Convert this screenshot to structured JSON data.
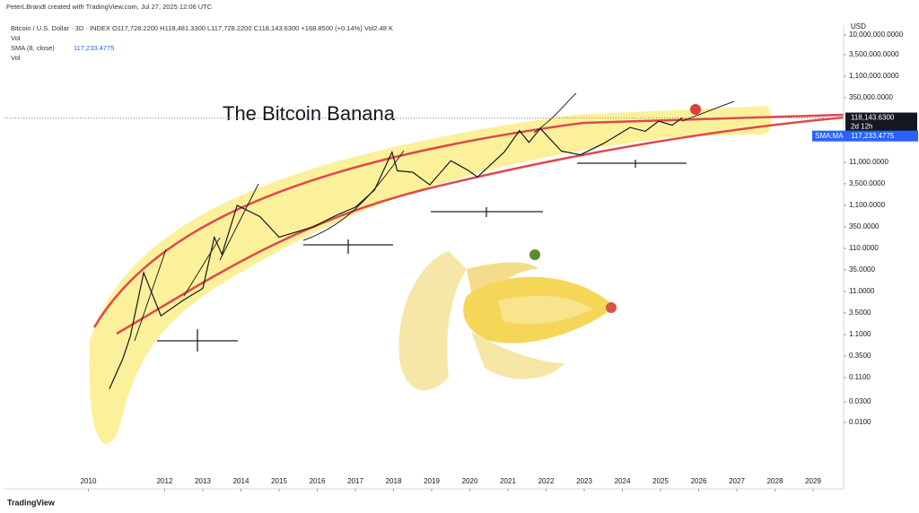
{
  "header": {
    "credit": "PeterLBrandt created with TradingView.com, Jul 27, 2025 12:06 UTC",
    "symbol_line": "Bitcoin / U.S. Dollar · 3D · INDEX  O117,728.2200 H118,481.3300 L117,728.2200 C118,143.6300 +168.8500 (+0.14%) Vol2.48 K",
    "vol_1": "Vol",
    "sma_name": "SMA (8, close)",
    "sma_value": "117,233.4775",
    "vol_2": "Vol"
  },
  "footer": {
    "brand": "TradingView"
  },
  "chart_data": {
    "type": "line",
    "title": "The Bitcoin Banana",
    "y_unit": "USD",
    "log_y": true,
    "color": "#131722",
    "xlim": [
      2007.8,
      2029.8
    ],
    "xticks": [
      2010,
      2012,
      2013,
      2014,
      2015,
      2016,
      2017,
      2018,
      2019,
      2020,
      2021,
      2022,
      2023,
      2024,
      2025,
      2026,
      2027,
      2028,
      2029
    ],
    "ylim": [
      0.000365,
      16950000
    ],
    "yticks": [
      {
        "value": 10000000,
        "label": "10,000,000.0000"
      },
      {
        "value": 3500000,
        "label": "3,500,000.0000"
      },
      {
        "value": 1100000,
        "label": "1,100,000.0000"
      },
      {
        "value": 350000,
        "label": "350,000.0000"
      },
      {
        "value": 11000,
        "label": "11,000.0000"
      },
      {
        "value": 3500,
        "label": "3,500.0000"
      },
      {
        "value": 1100,
        "label": "1,100.0000"
      },
      {
        "value": 350,
        "label": "350.0000"
      },
      {
        "value": 110,
        "label": "110.0000"
      },
      {
        "value": 35,
        "label": "35.0000"
      },
      {
        "value": 11,
        "label": "11.0000"
      },
      {
        "value": 3.5,
        "label": "3.5000"
      },
      {
        "value": 1.1,
        "label": "1.1000"
      },
      {
        "value": 0.35,
        "label": "0.3500"
      },
      {
        "value": 0.11,
        "label": "0.1100"
      },
      {
        "value": 0.03,
        "label": "0.0300"
      },
      {
        "value": 0.01,
        "label": "0.0100"
      }
    ],
    "last_price": {
      "value": 118143.63,
      "label": "118,143.6300"
    },
    "countdown": "2d 12h",
    "sma_tag": "SMA:MA",
    "sma_last": {
      "value": 117233.4775,
      "label": "117,233.4775"
    },
    "x": [
      2010.55,
      2010.9,
      2011.1,
      2011.45,
      2011.9,
      2012.5,
      2013.0,
      2013.3,
      2013.5,
      2013.9,
      2014.5,
      2015.0,
      2015.9,
      2016.5,
      2017.0,
      2017.5,
      2017.96,
      2018.1,
      2018.5,
      2018.95,
      2019.5,
      2019.95,
      2020.2,
      2020.9,
      2021.3,
      2021.55,
      2021.85,
      2022.4,
      2022.9,
      2023.5,
      2024.2,
      2024.6,
      2024.95,
      2025.3,
      2025.57
    ],
    "values": [
      0.06,
      0.3,
      1,
      30,
      3,
      7,
      13,
      200,
      80,
      1100,
      600,
      200,
      350,
      650,
      1000,
      2500,
      19000,
      7000,
      6500,
      3300,
      12000,
      7200,
      5000,
      19000,
      60000,
      32000,
      67000,
      20000,
      16500,
      30000,
      71000,
      58000,
      100000,
      80000,
      118143.63
    ]
  }
}
